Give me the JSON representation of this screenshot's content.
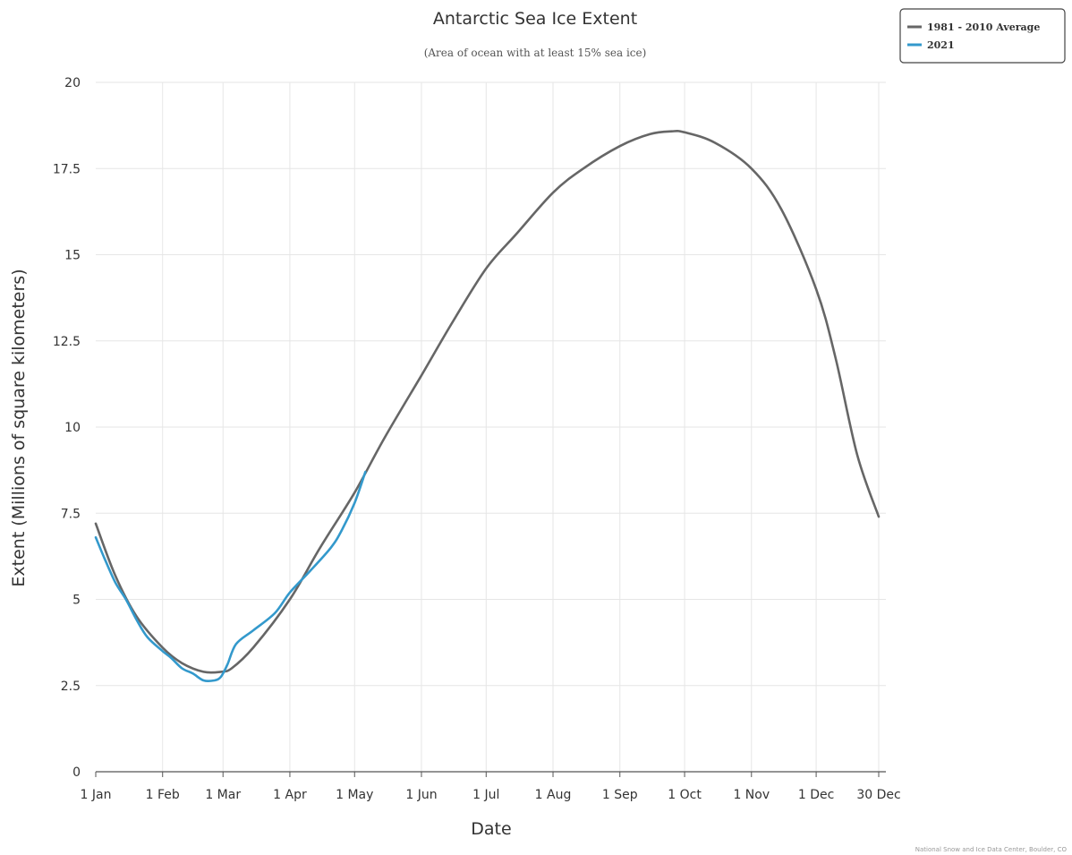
{
  "chart_data": {
    "type": "line",
    "title": "Antarctic Sea Ice Extent",
    "subtitle": "(Area of ocean with at least 15% sea ice)",
    "xlabel": "Date",
    "ylabel": "Extent (Millions of square kilometers)",
    "x_ticks": [
      {
        "label": "1 Jan",
        "date": "01-01"
      },
      {
        "label": "1 Feb",
        "date": "02-01"
      },
      {
        "label": "1 Mar",
        "date": "03-01"
      },
      {
        "label": "1 Apr",
        "date": "04-01"
      },
      {
        "label": "1 May",
        "date": "05-01"
      },
      {
        "label": "1 Jun",
        "date": "06-01"
      },
      {
        "label": "1 Jul",
        "date": "07-01"
      },
      {
        "label": "1 Aug",
        "date": "08-01"
      },
      {
        "label": "1 Sep",
        "date": "09-01"
      },
      {
        "label": "1 Oct",
        "date": "10-01"
      },
      {
        "label": "1 Nov",
        "date": "11-01"
      },
      {
        "label": "1 Dec",
        "date": "12-01"
      },
      {
        "label": "30 Dec",
        "date": "12-30"
      }
    ],
    "y_ticks": [
      {
        "label": "0",
        "value": 0
      },
      {
        "label": "2.5",
        "value": 2.5
      },
      {
        "label": "5",
        "value": 5
      },
      {
        "label": "7.5",
        "value": 7.5
      },
      {
        "label": "10",
        "value": 10
      },
      {
        "label": "12.5",
        "value": 12.5
      },
      {
        "label": "15",
        "value": 15
      },
      {
        "label": "17.5",
        "value": 17.5
      },
      {
        "label": "20",
        "value": 20
      }
    ],
    "ylim": [
      0,
      20
    ],
    "grid": true,
    "legend_position": "top-right",
    "series": [
      {
        "name": "1981 - 2010 Average",
        "color": "#666666",
        "points": [
          [
            "01-01",
            7.2
          ],
          [
            "01-10",
            5.7
          ],
          [
            "01-20",
            4.5
          ],
          [
            "02-01",
            3.6
          ],
          [
            "02-10",
            3.15
          ],
          [
            "02-20",
            2.9
          ],
          [
            "02-28",
            2.9
          ],
          [
            "03-05",
            3.0
          ],
          [
            "03-15",
            3.6
          ],
          [
            "04-01",
            5.0
          ],
          [
            "04-15",
            6.5
          ],
          [
            "05-01",
            8.1
          ],
          [
            "05-15",
            9.7
          ],
          [
            "06-01",
            11.5
          ],
          [
            "06-15",
            13.0
          ],
          [
            "07-01",
            14.6
          ],
          [
            "07-15",
            15.6
          ],
          [
            "08-01",
            16.8
          ],
          [
            "08-15",
            17.5
          ],
          [
            "09-01",
            18.15
          ],
          [
            "09-15",
            18.5
          ],
          [
            "09-25",
            18.58
          ],
          [
            "10-01",
            18.55
          ],
          [
            "10-15",
            18.25
          ],
          [
            "11-01",
            17.5
          ],
          [
            "11-15",
            16.3
          ],
          [
            "12-01",
            14.0
          ],
          [
            "12-10",
            12.0
          ],
          [
            "12-20",
            9.2
          ],
          [
            "12-30",
            7.4
          ]
        ]
      },
      {
        "name": "2021",
        "color": "#3399cc",
        "points": [
          [
            "01-01",
            6.8
          ],
          [
            "01-05",
            6.2
          ],
          [
            "01-10",
            5.5
          ],
          [
            "01-15",
            5.0
          ],
          [
            "01-20",
            4.4
          ],
          [
            "01-25",
            3.9
          ],
          [
            "02-01",
            3.5
          ],
          [
            "02-05",
            3.3
          ],
          [
            "02-10",
            3.0
          ],
          [
            "02-15",
            2.85
          ],
          [
            "02-20",
            2.65
          ],
          [
            "02-25",
            2.65
          ],
          [
            "02-28",
            2.75
          ],
          [
            "03-03",
            3.1
          ],
          [
            "03-07",
            3.7
          ],
          [
            "03-15",
            4.1
          ],
          [
            "03-25",
            4.6
          ],
          [
            "04-01",
            5.2
          ],
          [
            "04-10",
            5.8
          ],
          [
            "04-20",
            6.5
          ],
          [
            "04-25",
            7.0
          ],
          [
            "05-01",
            7.8
          ],
          [
            "05-06",
            8.7
          ]
        ]
      }
    ],
    "credit": "National Snow and Ice Data Center, Boulder, CO"
  }
}
